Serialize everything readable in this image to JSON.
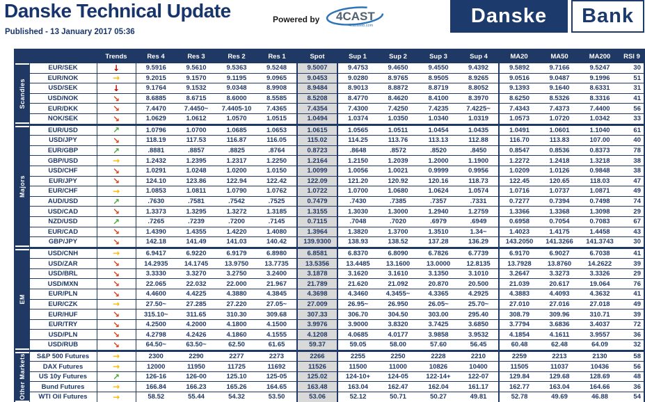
{
  "header": {
    "title": "Danske Technical Update",
    "published": "Published - 13 January 2017 05:36",
    "powered_by_label": "Powered by",
    "cast_logo_text": "4CAST",
    "cast_logo_sub": "4castweb.com",
    "bank_logo": {
      "left": "Danske",
      "right": "Bank"
    }
  },
  "colors": {
    "navy": "#1F3864",
    "spot_bg": "#D9D9D9",
    "swoosh_blue": "#2E75B6"
  },
  "trend_glyphs": {
    "down": "↓",
    "diag-down": "↘",
    "flat": "→",
    "diag-up": "↗"
  },
  "trend_colors": {
    "down": "#C00000",
    "diag-down": "#D9421B",
    "flat": "#FFB800",
    "diag-up": "#4FA83D"
  },
  "table": {
    "columns": [
      "Trends",
      "Res 4",
      "Res 3",
      "Res 2",
      "Res 1",
      "Spot",
      "Sup 1",
      "Sup 2",
      "Sup 3",
      "Sup 4",
      "MA20",
      "MA50",
      "MA200",
      "RSI 9"
    ],
    "groups": [
      {
        "label": "Scandies",
        "rows": [
          {
            "name": "EUR/SEK",
            "trend": "down",
            "cells": [
              "9.5916",
              "9.5610",
              "9.5363",
              "9.5248",
              "9.5007",
              "9.4753",
              "9.4650",
              "9.4550",
              "9.4392",
              "9.5892",
              "9.7166",
              "9.5247",
              "30"
            ]
          },
          {
            "name": "EUR/NOK",
            "trend": "flat",
            "cells": [
              "9.2015",
              "9.1570",
              "9.1195",
              "9.0965",
              "9.0453",
              "9.0280",
              "8.9765",
              "8.9505",
              "8.9265",
              "9.0516",
              "9.0487",
              "9.1996",
              "51"
            ]
          },
          {
            "name": "USD/SEK",
            "trend": "down",
            "cells": [
              "9.1764",
              "9.1532",
              "9.0348",
              "8.9908",
              "8.9484",
              "8.9013",
              "8.8872",
              "8.8719",
              "8.8052",
              "9.1393",
              "9.1640",
              "8.6331",
              "31"
            ]
          },
          {
            "name": "USD/NOK",
            "trend": "diag-down",
            "cells": [
              "8.6885",
              "8.6715",
              "8.6000",
              "8.5585",
              "8.5208",
              "8.4770",
              "8.4620",
              "8.4100",
              "8.3970",
              "8.6250",
              "8.5326",
              "8.3316",
              "41"
            ]
          },
          {
            "name": "EUR/DKK",
            "trend": "diag-down",
            "cells": [
              "7.4470",
              "7.4450~",
              "7.4405-10",
              "7.4365",
              "7.4354",
              "7.4300",
              "7.4250",
              "7.4235",
              "7.4225~",
              "7.4343",
              "7.4373",
              "7.4400",
              "56"
            ]
          },
          {
            "name": "NOK/SEK",
            "trend": "diag-down",
            "cells": [
              "1.0629",
              "1.0612",
              "1.0570",
              "1.0515",
              "1.0494",
              "1.0374",
              "1.0350",
              "1.0340",
              "1.0319",
              "1.0573",
              "1.0720",
              "1.0342",
              "33"
            ]
          }
        ]
      },
      {
        "label": "Majors",
        "rows": [
          {
            "name": "EUR/USD",
            "trend": "diag-up",
            "cells": [
              "1.0796",
              "1.0700",
              "1.0685",
              "1.0653",
              "1.0615",
              "1.0565",
              "1.0511",
              "1.0454",
              "1.0435",
              "1.0491",
              "1.0601",
              "1.1040",
              "61"
            ]
          },
          {
            "name": "USD/JPY",
            "trend": "diag-down",
            "cells": [
              "118.19",
              "117.53",
              "116.87",
              "116.05",
              "115.02",
              "114.25",
              "113.76",
              "113.13",
              "112.88",
              "116.70",
              "113.83",
              "107.00",
              "40"
            ]
          },
          {
            "name": "EUR/GBP",
            "trend": "diag-up",
            "cells": [
              ".8881",
              ".8857",
              ".8825",
              ".8764",
              "0.8723",
              ".8648",
              ".8572",
              ".8520",
              ".8450",
              "0.8547",
              "0.8536",
              "0.8373",
              "78"
            ]
          },
          {
            "name": "GBP/USD",
            "trend": "flat",
            "cells": [
              "1.2432",
              "1.2395",
              "1.2317",
              "1.2250",
              "1.2164",
              "1.2150",
              "1.2039",
              "1.2000",
              "1.1900",
              "1.2272",
              "1.2418",
              "1.3218",
              "38"
            ]
          },
          {
            "name": "USD/CHF",
            "trend": "diag-down",
            "cells": [
              "1.0291",
              "1.0248",
              "1.0200",
              "1.0150",
              "1.0099",
              "1.0056",
              "1.0021",
              "0.9999",
              "0.9956",
              "1.0209",
              "1.0126",
              "0.9848",
              "38"
            ]
          },
          {
            "name": "EUR/JPY",
            "trend": "diag-down",
            "cells": [
              "124.10",
              "123.86",
              "122.94",
              "122.42",
              "122.09",
              "121.20",
              "120.92",
              "120.16",
              "118.73",
              "122.45",
              "120.65",
              "118.03",
              "47"
            ]
          },
          {
            "name": "EUR/CHF",
            "trend": "flat",
            "cells": [
              "1.0853",
              "1.0811",
              "1.0790",
              "1.0762",
              "1.0722",
              "1.0700",
              "1.0680",
              "1.0624",
              "1.0574",
              "1.0716",
              "1.0737",
              "1.0871",
              "49"
            ]
          },
          {
            "name": "AUD/USD",
            "trend": "diag-up",
            "cells": [
              ".7630",
              ".7581",
              ".7542",
              ".7525",
              "0.7479",
              ".7430",
              ".7385",
              ".7357",
              ".7331",
              "0.7277",
              "0.7394",
              "0.7498",
              "74"
            ]
          },
          {
            "name": "USD/CAD",
            "trend": "diag-down",
            "cells": [
              "1.3373",
              "1.3295",
              "1.3272",
              "1.3185",
              "1.3155",
              "1.3030",
              "1.3000",
              "1.2940",
              "1.2759",
              "1.3366",
              "1.3368",
              "1.3098",
              "29"
            ]
          },
          {
            "name": "NZD/USD",
            "trend": "diag-up",
            "cells": [
              ".7265",
              ".7239",
              ".7200",
              ".7145",
              "0.7115",
              ".7048",
              ".7020",
              ".6979",
              ".6949",
              "0.6958",
              "0.7054",
              "0.7083",
              "67"
            ]
          },
          {
            "name": "EUR/CAD",
            "trend": "diag-down",
            "cells": [
              "1.4390",
              "1.4355",
              "1.4220",
              "1.4080",
              "1.3964",
              "1.3820",
              "1.3700",
              "1.3510",
              "1.34~",
              "1.4023",
              "1.4175",
              "1.4458",
              "43"
            ]
          },
          {
            "name": "GBP/JPY",
            "trend": "diag-down",
            "cells": [
              "142.18",
              "141.49",
              "141.03",
              "140.42",
              "139.9300",
              "138.93",
              "138.52",
              "137.28",
              "136.29",
              "143.2050",
              "141.3266",
              "141.3743",
              "30"
            ]
          }
        ]
      },
      {
        "label": "EM",
        "rows": [
          {
            "name": "USD/CNH",
            "trend": "flat",
            "cells": [
              "6.9417",
              "6.9220",
              "6.9179",
              "6.8980",
              "6.8581",
              "6.8370",
              "6.8090",
              "6.7826",
              "6.7739",
              "6.9170",
              "6.9027",
              "6.7038",
              "41"
            ]
          },
          {
            "name": "USD/ZAR",
            "trend": "diag-down",
            "cells": [
              "14.2935",
              "14.1745",
              "13.9750",
              "13.7735",
              "13.5356",
              "13.4485",
              "13.1600",
              "13.0000",
              "12.8135",
              "13.7928",
              "13.8760",
              "14.2622",
              "39"
            ]
          },
          {
            "name": "USD/BRL",
            "trend": "diag-down",
            "cells": [
              "3.3330",
              "3.3270",
              "3.2750",
              "3.2400",
              "3.1878",
              "3.1620",
              "3.1610",
              "3.1350",
              "3.1010",
              "3.2647",
              "3.3273",
              "3.3326",
              "29"
            ]
          },
          {
            "name": "USD/MXN",
            "trend": "diag-down",
            "cells": [
              "22.065",
              "22.032",
              "22.000",
              "21.967",
              "21.789",
              "21.620",
              "21.092",
              "20.870",
              "20.500",
              "21.039",
              "20.617",
              "19.064",
              "76"
            ]
          },
          {
            "name": "EUR/PLN",
            "trend": "diag-down",
            "cells": [
              "4.4600",
              "4.4225",
              "4.3880",
              "4.3845",
              "4.3698",
              "4.3460",
              "4.3455~",
              "4.3365",
              "4.2925",
              "4.3883",
              "4.4093",
              "4.3632",
              "41"
            ]
          },
          {
            "name": "EUR/CZK",
            "trend": "flat",
            "cells": [
              "27.50~",
              "27.285",
              "27.220",
              "27.05~",
              "27.009",
              "26.95~",
              "26.950",
              "26.05~",
              "25.70~",
              "27.010",
              "27.016",
              "27.018",
              "49"
            ]
          },
          {
            "name": "EUR/HUF",
            "trend": "diag-down",
            "cells": [
              "315.10~",
              "311.65",
              "310.30",
              "309.68",
              "307.33",
              "306.70",
              "304.50",
              "303.00",
              "295.40",
              "308.79",
              "309.96",
              "310.71",
              "39"
            ]
          },
          {
            "name": "EUR/TRY",
            "trend": "diag-down",
            "cells": [
              "4.2500",
              "4.2000",
              "4.1800",
              "4.1500",
              "3.9976",
              "3.9000",
              "3.8320",
              "3.7425",
              "3.6850",
              "3.7794",
              "3.6836",
              "3.4037",
              "72"
            ]
          },
          {
            "name": "USD/PLN",
            "trend": "diag-down",
            "cells": [
              "4.2798",
              "4.2426",
              "4.1860",
              "4.1555",
              "4.1208",
              "4.0685",
              "4.0177",
              "3.9858",
              "3.9532",
              "4.1854",
              "4.1611",
              "3.9557",
              "36"
            ]
          },
          {
            "name": "USD/RUB",
            "trend": "diag-down",
            "cells": [
              "64.50~",
              "63.50~",
              "62.50",
              "61.65",
              "59.37",
              "59.05",
              "58.00",
              "57.60",
              "56.45",
              "60.48",
              "62.48",
              "64.09",
              "32"
            ]
          }
        ]
      },
      {
        "label": "Other Markets",
        "rows": [
          {
            "name": "S&P 500 Futures",
            "trend": "flat",
            "cells": [
              "2300",
              "2290",
              "2277",
              "2273",
              "2266",
              "2255",
              "2250",
              "2228",
              "2210",
              "2259",
              "2213",
              "2130",
              "58"
            ]
          },
          {
            "name": "DAX Futures",
            "trend": "flat",
            "cells": [
              "12000",
              "11950",
              "11725",
              "11692",
              "11526",
              "11500",
              "11000",
              "10826",
              "10400",
              "11505",
              "11037",
              "10436",
              "56"
            ]
          },
          {
            "name": "US 10y Futures",
            "trend": "diag-up",
            "cells": [
              "126-16",
              "126-00",
              "125.10",
              "125-05",
              "125.02",
              "124-10+",
              "124-05",
              "122-14+",
              "122-07",
              "129.84",
              "129.68",
              "128.69",
              "48"
            ]
          },
          {
            "name": "Bund Futures",
            "trend": "flat",
            "cells": [
              "166.84",
              "166.23",
              "165.26",
              "164.65",
              "163.48",
              "163.04",
              "162.47",
              "162.04",
              "161.17",
              "162.77",
              "163.04",
              "164.66",
              "36"
            ]
          },
          {
            "name": "WTI Oil Futures",
            "trend": "flat",
            "cells": [
              "58.52",
              "55.44",
              "54.32",
              "53.50",
              "53.06",
              "52.12",
              "50.71",
              "50.27",
              "49.81",
              "52.78",
              "49.69",
              "46.88",
              "54"
            ]
          }
        ]
      }
    ]
  }
}
